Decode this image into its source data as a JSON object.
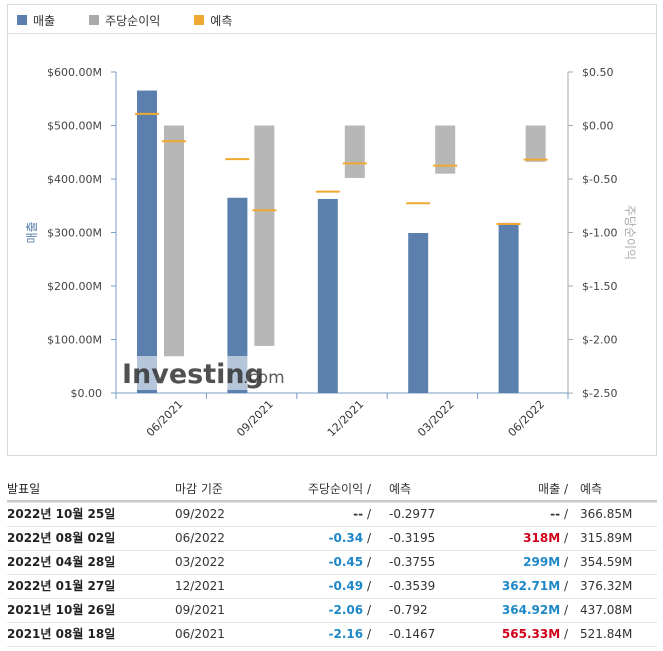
{
  "legend": [
    {
      "label": "매출",
      "color": "#5b80ae"
    },
    {
      "label": "주당순이익",
      "color": "#aaaaaa"
    },
    {
      "label": "예측",
      "color": "#f0a830"
    }
  ],
  "watermark": {
    "brand": "Investing",
    "suffix": ".com"
  },
  "chart_data": {
    "type": "bar",
    "categories": [
      "06/2021",
      "09/2021",
      "12/2021",
      "03/2022",
      "06/2022"
    ],
    "left_axis": {
      "label": "매출",
      "ylim": [
        0,
        600
      ],
      "unit": "M",
      "ticks": [
        "$600.00M",
        "$500.00M",
        "$400.00M",
        "$300.00M",
        "$200.00M",
        "$100.00M",
        "$0.00"
      ]
    },
    "right_axis": {
      "label": "주당순이익",
      "ylim": [
        -2.5,
        0.5
      ],
      "ticks": [
        "$0.50",
        "$0.00",
        "$-0.50",
        "$-1.00",
        "$-1.50",
        "$-2.00",
        "$-2.50"
      ]
    },
    "series": [
      {
        "name": "매출",
        "axis": "left",
        "values": [
          565.33,
          364.92,
          362.71,
          299,
          318
        ],
        "forecast": [
          521.84,
          437.08,
          376.32,
          354.59,
          315.89
        ]
      },
      {
        "name": "주당순이익",
        "axis": "right",
        "values": [
          -2.16,
          -2.06,
          -0.49,
          -0.45,
          -0.34
        ],
        "forecast": [
          -0.1467,
          -0.792,
          -0.3539,
          -0.3755,
          -0.3195
        ]
      }
    ],
    "grid": false
  },
  "table": {
    "headers": {
      "date": "발표일",
      "period": "마감 기준",
      "eps": "주당순이익",
      "eps_sep": " /",
      "eps_forecast": "예측",
      "rev": "매출",
      "rev_sep": " /",
      "rev_forecast": "예측"
    },
    "rows": [
      {
        "date": "2022년 10월 25일",
        "period": "09/2022",
        "eps": "--",
        "eps_color": "#333333",
        "eps_forecast": "-0.2977",
        "rev": "--",
        "rev_color": "#333333",
        "rev_forecast": "366.85M"
      },
      {
        "date": "2022년 08월 02일",
        "period": "06/2022",
        "eps": "-0.34",
        "eps_color": "#1e88c8",
        "eps_forecast": "-0.3195",
        "rev": "318M",
        "rev_color": "#d0021b",
        "rev_forecast": "315.89M"
      },
      {
        "date": "2022년 04월 28일",
        "period": "03/2022",
        "eps": "-0.45",
        "eps_color": "#1e88c8",
        "eps_forecast": "-0.3755",
        "rev": "299M",
        "rev_color": "#1e88c8",
        "rev_forecast": "354.59M"
      },
      {
        "date": "2022년 01월 27일",
        "period": "12/2021",
        "eps": "-0.49",
        "eps_color": "#1e88c8",
        "eps_forecast": "-0.3539",
        "rev": "362.71M",
        "rev_color": "#1e88c8",
        "rev_forecast": "376.32M"
      },
      {
        "date": "2021년 10월 26일",
        "period": "09/2021",
        "eps": "-2.06",
        "eps_color": "#1e88c8",
        "eps_forecast": "-0.792",
        "rev": "364.92M",
        "rev_color": "#1e88c8",
        "rev_forecast": "437.08M"
      },
      {
        "date": "2021년 08월 18일",
        "period": "06/2021",
        "eps": "-2.16",
        "eps_color": "#1e88c8",
        "eps_forecast": "-0.1467",
        "rev": "565.33M",
        "rev_color": "#d0021b",
        "rev_forecast": "521.84M"
      }
    ]
  }
}
